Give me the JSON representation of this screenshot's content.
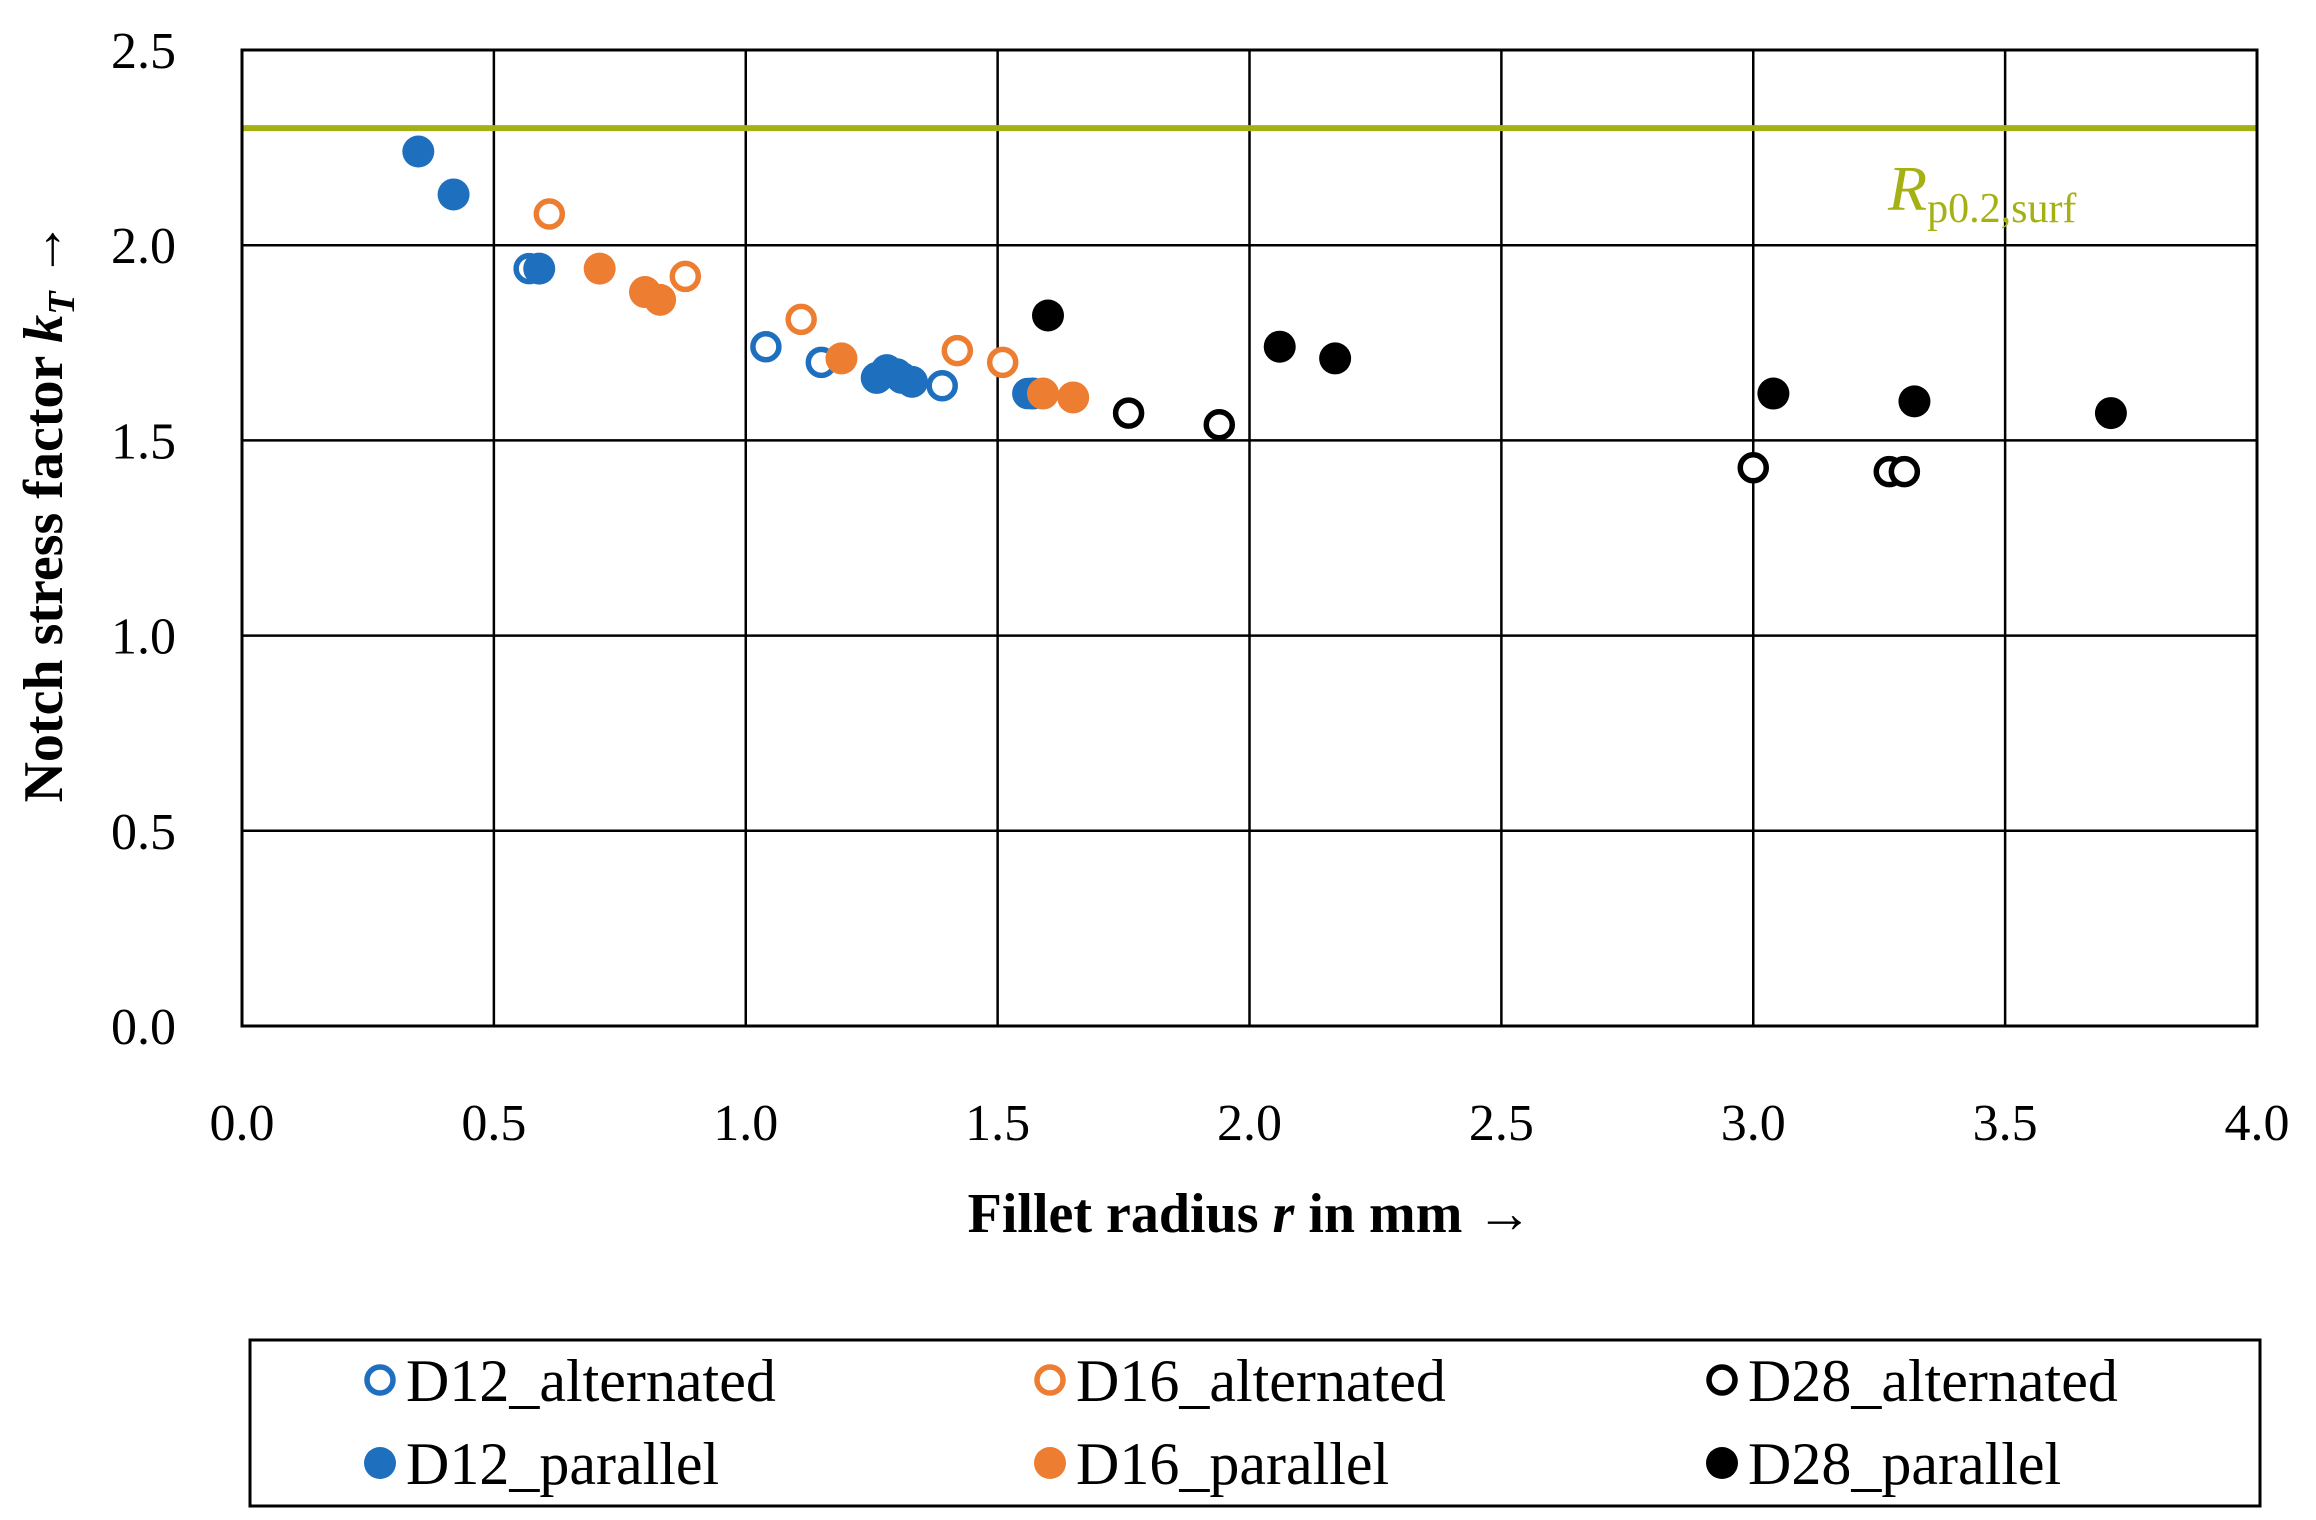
{
  "chart_data": {
    "type": "scatter",
    "xlabel_prefix": "Fillet radius ",
    "xlabel_var": "r",
    "xlabel_suffix": " in mm →",
    "ylabel_prefix": "Notch stress factor ",
    "ylabel_var": "k",
    "ylabel_sub": "T",
    "ylabel_suffix": " →",
    "xlim": [
      0.0,
      4.0
    ],
    "ylim": [
      0.0,
      2.5
    ],
    "x_ticks": [
      "0.0",
      "0.5",
      "1.0",
      "1.5",
      "2.0",
      "2.5",
      "3.0",
      "3.5",
      "4.0"
    ],
    "y_ticks": [
      "0.0",
      "0.5",
      "1.0",
      "1.5",
      "2.0",
      "2.5"
    ],
    "grid": true,
    "legend_position": "bottom",
    "reference_line": {
      "y": 2.3,
      "label_main": "R",
      "label_sub": "p0.2,surf",
      "color": "#a5b012"
    },
    "series": [
      {
        "name": "D12_alternated",
        "color": "#1f6fbf",
        "filled": false,
        "points": [
          [
            0.57,
            1.94
          ],
          [
            1.04,
            1.74
          ],
          [
            1.15,
            1.7
          ],
          [
            1.26,
            1.66
          ],
          [
            1.3,
            1.67
          ],
          [
            1.39,
            1.64
          ],
          [
            1.56,
            1.62
          ]
        ]
      },
      {
        "name": "D12_parallel",
        "color": "#1f6fbf",
        "filled": true,
        "points": [
          [
            0.35,
            2.24
          ],
          [
            0.42,
            2.13
          ],
          [
            0.59,
            1.94
          ],
          [
            1.26,
            1.66
          ],
          [
            1.28,
            1.68
          ],
          [
            1.31,
            1.66
          ],
          [
            1.33,
            1.65
          ],
          [
            1.57,
            1.62
          ]
        ]
      },
      {
        "name": "D16_alternated",
        "color": "#ed7d31",
        "filled": false,
        "points": [
          [
            0.61,
            2.08
          ],
          [
            0.88,
            1.92
          ],
          [
            1.11,
            1.81
          ],
          [
            1.42,
            1.73
          ],
          [
            1.51,
            1.7
          ]
        ]
      },
      {
        "name": "D16_parallel",
        "color": "#ed7d31",
        "filled": true,
        "points": [
          [
            0.71,
            1.94
          ],
          [
            0.8,
            1.88
          ],
          [
            0.83,
            1.86
          ],
          [
            1.19,
            1.71
          ],
          [
            1.59,
            1.62
          ],
          [
            1.65,
            1.61
          ]
        ]
      },
      {
        "name": "D28_alternated",
        "color": "#000000",
        "filled": false,
        "points": [
          [
            1.76,
            1.57
          ],
          [
            1.94,
            1.54
          ],
          [
            3.0,
            1.43
          ],
          [
            3.27,
            1.42
          ],
          [
            3.3,
            1.42
          ]
        ]
      },
      {
        "name": "D28_parallel",
        "color": "#000000",
        "filled": true,
        "points": [
          [
            1.6,
            1.82
          ],
          [
            2.06,
            1.74
          ],
          [
            2.17,
            1.71
          ],
          [
            3.04,
            1.62
          ],
          [
            3.32,
            1.6
          ],
          [
            3.71,
            1.57
          ]
        ]
      }
    ]
  }
}
